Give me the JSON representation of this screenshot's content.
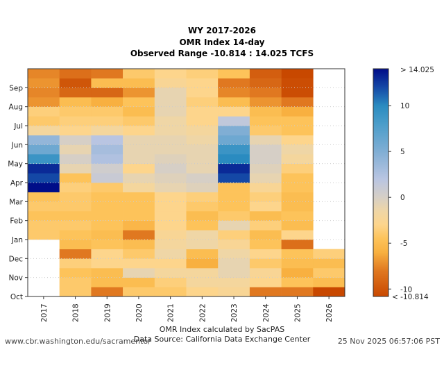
{
  "chart_data": {
    "type": "heatmap",
    "title": [
      "WY 2017-2026",
      "OMR Index 14-day",
      "Observed Range -10.814 : 14.025 TCFS"
    ],
    "x": [
      "2017",
      "2018",
      "2019",
      "2020",
      "2021",
      "2022",
      "2023",
      "2024",
      "2025",
      "2026"
    ],
    "y_ticks": [
      "Oct",
      "Nov",
      "Dec",
      "Jan",
      "Feb",
      "Mar",
      "Apr",
      "May",
      "Jun",
      "Jul",
      "Aug",
      "Sep"
    ],
    "y_resolution": "half-month, Oct to Sep (water year)",
    "units": "TCFS",
    "colorbar": {
      "range": [
        -10.814,
        14.025
      ],
      "ticks": [
        -10,
        -5,
        0,
        5,
        10
      ],
      "top_label": "> 14.025",
      "bottom_label": "< -10.814",
      "stops": [
        [
          -10.814,
          "#c84800"
        ],
        [
          -8,
          "#e07820"
        ],
        [
          -6,
          "#f8b040"
        ],
        [
          -4.5,
          "#fdc35a"
        ],
        [
          -3,
          "#fdd58c"
        ],
        [
          -1.5,
          "#efd6a6"
        ],
        [
          0,
          "#d6cfc6"
        ],
        [
          2,
          "#b9c5e2"
        ],
        [
          5,
          "#80aed4"
        ],
        [
          8,
          "#4b9dca"
        ],
        [
          10,
          "#2a8bc0"
        ],
        [
          12,
          "#1448a6"
        ],
        [
          14.025,
          "#000c88"
        ]
      ]
    },
    "values": [
      [
        null,
        null,
        null,
        null,
        null,
        null,
        -4,
        -4,
        -4.5,
        -4,
        -4.5,
        14,
        12,
        13,
        9,
        6,
        4,
        -2,
        -4,
        -3.5,
        -7,
        -7.5,
        -7,
        -7.5
      ],
      [
        -4,
        -4,
        -4.5,
        -3.5,
        -8,
        -5,
        -4.5,
        -4,
        -4.5,
        -4,
        -4,
        -3.5,
        -4.5,
        -1,
        0,
        -1,
        0,
        -3,
        -3.5,
        -4,
        -5,
        -9,
        -10,
        -8.5
      ],
      [
        -8,
        -5,
        -5,
        -3,
        -3,
        -4.5,
        -5,
        -4.5,
        -4.5,
        -4.5,
        -4.5,
        -4,
        1,
        0.5,
        2.5,
        3,
        2,
        -2,
        -3.5,
        -4,
        -6,
        -9,
        -5,
        -8
      ],
      [
        -4,
        -5,
        -1,
        -3,
        -4,
        -5,
        -8,
        -5.5,
        -4.5,
        -4.5,
        -4.5,
        -2,
        -1,
        -3,
        -1,
        -1,
        -1,
        -3,
        -4,
        -5,
        -4.5,
        -7,
        -5,
        -4
      ],
      [
        -4,
        -3.5,
        -2,
        -3,
        -1.5,
        -2,
        -2.5,
        -3,
        -3,
        -3,
        -3,
        -1,
        -0.5,
        0,
        -0.5,
        -1,
        -1,
        -1.5,
        -1.5,
        -1,
        -1,
        -1,
        -2.5,
        -3
      ],
      [
        -3,
        -2,
        -2,
        -6,
        -5,
        -1.5,
        -1.5,
        -4.5,
        -5,
        -4,
        -3.5,
        -0.5,
        0,
        -1,
        -1,
        -1,
        -1.5,
        -2,
        -3,
        -3,
        -3.5,
        -3,
        -3,
        -3.5
      ],
      [
        -2.5,
        -2,
        -1,
        -1,
        -1.5,
        -2.5,
        -3.5,
        -1,
        -4,
        -4.5,
        -4.5,
        -4.5,
        12,
        13,
        10,
        9,
        6,
        5,
        1.5,
        -3,
        -5,
        -7.5,
        -8,
        -4.5
      ],
      [
        -8,
        -3,
        -2.5,
        -4,
        -3,
        -4.5,
        -5,
        -3.5,
        -5,
        -3,
        -3.5,
        -2.5,
        -1,
        -0.5,
        0,
        0,
        -1,
        -4,
        -4.5,
        -5,
        -7,
        -8,
        -9,
        -9.5
      ],
      [
        -8,
        -4.5,
        -6,
        -5,
        -4.5,
        -8.5,
        -3,
        -5,
        -4.5,
        -5,
        -5,
        -4.5,
        -4.5,
        -3.5,
        -2,
        -1.5,
        -3,
        -4.5,
        -4.5,
        -6,
        -8,
        -10.5,
        -10.5,
        -10.8
      ],
      [
        -10.8,
        -5,
        -4,
        -5,
        -3.5,
        null,
        null,
        null,
        null,
        null,
        null,
        null,
        null,
        null,
        null,
        null,
        null,
        null,
        null,
        null,
        null,
        null,
        null,
        null
      ]
    ]
  },
  "footer": {
    "credit": "OMR Index calculated by SacPAS",
    "source": "Data Source: California Data Exchange Center",
    "url": "www.cbr.washington.edu/sacramento/",
    "timestamp": "25 Nov 2025 06:57:06 PST"
  }
}
